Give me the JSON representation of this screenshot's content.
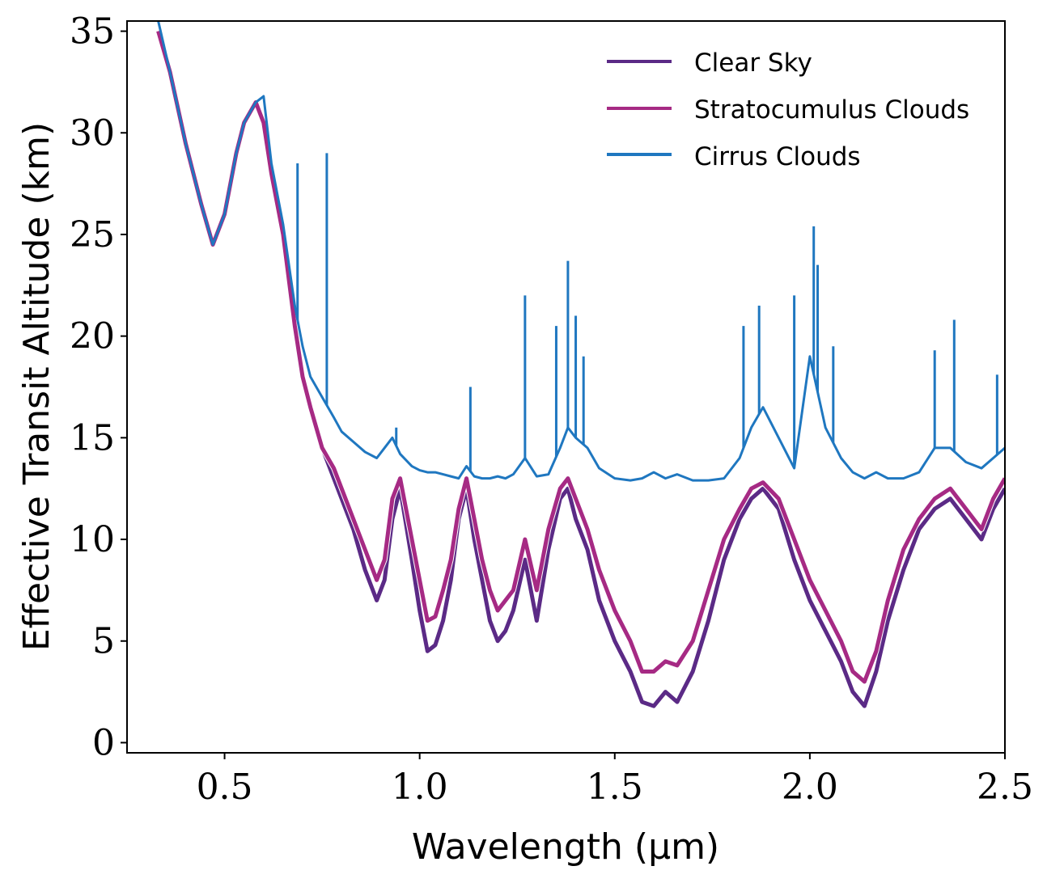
{
  "chart_data": {
    "type": "line",
    "title": "",
    "xlabel": "Wavelength (μm)",
    "ylabel": "Effective Transit Altitude (km)",
    "xlim": [
      0.25,
      2.5
    ],
    "ylim": [
      -0.5,
      35.5
    ],
    "xticks": [
      0.5,
      1.0,
      1.5,
      2.0,
      2.5
    ],
    "xtick_labels": [
      "0.5",
      "1.0",
      "1.5",
      "2.0",
      "2.5"
    ],
    "yticks": [
      0,
      5,
      10,
      15,
      20,
      25,
      30,
      35
    ],
    "ytick_labels": [
      "0",
      "5",
      "10",
      "15",
      "20",
      "25",
      "30",
      "35"
    ],
    "grid": false,
    "legend_position": "top-right",
    "series": [
      {
        "name": "Clear Sky",
        "color": "#5b2a86",
        "x": [
          0.33,
          0.36,
          0.4,
          0.44,
          0.47,
          0.5,
          0.53,
          0.55,
          0.58,
          0.6,
          0.62,
          0.65,
          0.68,
          0.7,
          0.72,
          0.75,
          0.78,
          0.8,
          0.83,
          0.86,
          0.89,
          0.91,
          0.93,
          0.95,
          0.98,
          1.0,
          1.02,
          1.04,
          1.06,
          1.08,
          1.1,
          1.12,
          1.14,
          1.16,
          1.18,
          1.2,
          1.22,
          1.24,
          1.27,
          1.3,
          1.33,
          1.36,
          1.38,
          1.4,
          1.43,
          1.46,
          1.5,
          1.54,
          1.57,
          1.6,
          1.63,
          1.66,
          1.7,
          1.74,
          1.78,
          1.82,
          1.85,
          1.88,
          1.92,
          1.96,
          2.0,
          2.04,
          2.08,
          2.11,
          2.14,
          2.17,
          2.2,
          2.24,
          2.28,
          2.32,
          2.36,
          2.4,
          2.44,
          2.47,
          2.5
        ],
        "y": [
          35.0,
          33.0,
          29.5,
          26.5,
          24.5,
          26.0,
          29.0,
          30.5,
          31.5,
          30.5,
          28.0,
          25.0,
          20.5,
          18.0,
          16.5,
          14.5,
          13.0,
          12.0,
          10.5,
          8.5,
          7.0,
          8.0,
          11.0,
          12.5,
          9.0,
          6.5,
          4.5,
          4.8,
          6.0,
          8.0,
          11.0,
          12.5,
          10.0,
          8.0,
          6.0,
          5.0,
          5.5,
          6.5,
          9.0,
          6.0,
          9.5,
          12.0,
          12.5,
          11.0,
          9.5,
          7.0,
          5.0,
          3.5,
          2.0,
          1.8,
          2.5,
          2.0,
          3.5,
          6.0,
          9.0,
          11.0,
          12.0,
          12.5,
          11.5,
          9.0,
          7.0,
          5.5,
          4.0,
          2.5,
          1.8,
          3.5,
          6.0,
          8.5,
          10.5,
          11.5,
          12.0,
          11.0,
          10.0,
          11.5,
          12.5
        ]
      },
      {
        "name": "Stratocumulus Clouds",
        "color": "#a62a84",
        "x": [
          0.33,
          0.36,
          0.4,
          0.44,
          0.47,
          0.5,
          0.53,
          0.55,
          0.58,
          0.6,
          0.62,
          0.65,
          0.68,
          0.7,
          0.72,
          0.75,
          0.78,
          0.8,
          0.83,
          0.86,
          0.89,
          0.91,
          0.93,
          0.95,
          0.98,
          1.0,
          1.02,
          1.04,
          1.06,
          1.08,
          1.1,
          1.12,
          1.14,
          1.16,
          1.18,
          1.2,
          1.22,
          1.24,
          1.27,
          1.3,
          1.33,
          1.36,
          1.38,
          1.4,
          1.43,
          1.46,
          1.5,
          1.54,
          1.57,
          1.6,
          1.63,
          1.66,
          1.7,
          1.74,
          1.78,
          1.82,
          1.85,
          1.88,
          1.92,
          1.96,
          2.0,
          2.04,
          2.08,
          2.11,
          2.14,
          2.17,
          2.2,
          2.24,
          2.28,
          2.32,
          2.36,
          2.4,
          2.44,
          2.47,
          2.5
        ],
        "y": [
          35.0,
          33.0,
          29.5,
          26.5,
          24.5,
          26.0,
          29.0,
          30.5,
          31.5,
          30.5,
          28.0,
          25.0,
          20.5,
          18.0,
          16.5,
          14.5,
          13.5,
          12.5,
          11.0,
          9.5,
          8.0,
          9.0,
          12.0,
          13.0,
          10.0,
          8.0,
          6.0,
          6.2,
          7.5,
          9.0,
          11.5,
          13.0,
          11.0,
          9.0,
          7.5,
          6.5,
          7.0,
          7.5,
          10.0,
          7.5,
          10.5,
          12.5,
          13.0,
          12.0,
          10.5,
          8.5,
          6.5,
          5.0,
          3.5,
          3.5,
          4.0,
          3.8,
          5.0,
          7.5,
          10.0,
          11.5,
          12.5,
          12.8,
          12.0,
          10.0,
          8.0,
          6.5,
          5.0,
          3.5,
          3.0,
          4.5,
          7.0,
          9.5,
          11.0,
          12.0,
          12.5,
          11.5,
          10.5,
          12.0,
          13.0
        ]
      },
      {
        "name": "Cirrus Clouds",
        "color": "#1f77c0",
        "x": [
          0.33,
          0.36,
          0.4,
          0.44,
          0.47,
          0.5,
          0.53,
          0.55,
          0.58,
          0.6,
          0.62,
          0.65,
          0.68,
          0.7,
          0.72,
          0.75,
          0.78,
          0.8,
          0.83,
          0.86,
          0.89,
          0.91,
          0.93,
          0.95,
          0.98,
          1.0,
          1.02,
          1.04,
          1.06,
          1.08,
          1.1,
          1.12,
          1.14,
          1.16,
          1.18,
          1.2,
          1.22,
          1.24,
          1.27,
          1.3,
          1.33,
          1.36,
          1.38,
          1.4,
          1.43,
          1.46,
          1.5,
          1.54,
          1.57,
          1.6,
          1.63,
          1.66,
          1.7,
          1.74,
          1.78,
          1.82,
          1.85,
          1.88,
          1.92,
          1.96,
          2.0,
          2.04,
          2.08,
          2.11,
          2.14,
          2.17,
          2.2,
          2.24,
          2.28,
          2.32,
          2.36,
          2.4,
          2.44,
          2.47,
          2.5
        ],
        "y": [
          35.5,
          33.0,
          29.5,
          26.5,
          24.5,
          26.0,
          29.0,
          30.5,
          31.5,
          31.8,
          28.5,
          25.5,
          21.5,
          19.5,
          18.0,
          17.0,
          16.0,
          15.3,
          14.8,
          14.3,
          14.0,
          14.5,
          15.0,
          14.2,
          13.6,
          13.4,
          13.3,
          13.3,
          13.2,
          13.1,
          13.0,
          13.6,
          13.1,
          13.0,
          13.0,
          13.1,
          13.0,
          13.2,
          14.0,
          13.1,
          13.2,
          14.5,
          15.5,
          15.0,
          14.5,
          13.5,
          13.0,
          12.9,
          13.0,
          13.3,
          13.0,
          13.2,
          12.9,
          12.9,
          13.0,
          14.0,
          15.5,
          16.5,
          15.0,
          13.5,
          19.0,
          15.5,
          14.0,
          13.3,
          13.0,
          13.3,
          13.0,
          13.0,
          13.3,
          14.5,
          14.5,
          13.8,
          13.5,
          14.0,
          14.5
        ],
        "spikes": [
          {
            "x": 0.687,
            "y": 28.5
          },
          {
            "x": 0.762,
            "y": 29.0
          },
          {
            "x": 0.94,
            "y": 15.5
          },
          {
            "x": 1.13,
            "y": 17.5
          },
          {
            "x": 1.27,
            "y": 22.0
          },
          {
            "x": 1.35,
            "y": 20.5
          },
          {
            "x": 1.38,
            "y": 23.7
          },
          {
            "x": 1.4,
            "y": 21.0
          },
          {
            "x": 1.42,
            "y": 19.0
          },
          {
            "x": 1.83,
            "y": 20.5
          },
          {
            "x": 1.87,
            "y": 21.5
          },
          {
            "x": 1.96,
            "y": 22.0
          },
          {
            "x": 2.01,
            "y": 25.4
          },
          {
            "x": 2.02,
            "y": 23.5
          },
          {
            "x": 2.06,
            "y": 19.5
          },
          {
            "x": 2.32,
            "y": 19.3
          },
          {
            "x": 2.37,
            "y": 20.8
          },
          {
            "x": 2.48,
            "y": 18.1
          }
        ]
      }
    ]
  }
}
